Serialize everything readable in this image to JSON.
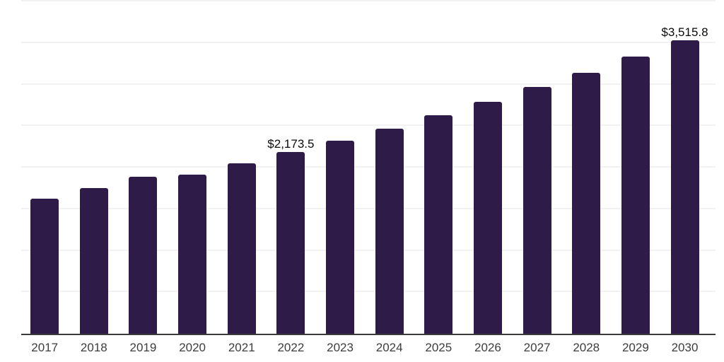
{
  "chart_data": {
    "type": "bar",
    "title": "",
    "xlabel": "",
    "ylabel": "",
    "categories": [
      "2017",
      "2018",
      "2019",
      "2020",
      "2021",
      "2022",
      "2023",
      "2024",
      "2025",
      "2026",
      "2027",
      "2028",
      "2029",
      "2030"
    ],
    "values": [
      1610,
      1740,
      1870,
      1900,
      2030,
      2173.5,
      2310,
      2455,
      2615,
      2775,
      2950,
      3125,
      3320,
      3515.8
    ],
    "value_labels": [
      "",
      "",
      "",
      "",
      "",
      "$2,173.5",
      "",
      "",
      "",
      "",
      "",
      "",
      "",
      "$3,515.8"
    ],
    "ylim": [
      0,
      4000
    ],
    "gridline_step": 500,
    "grid": true,
    "legend_position": "none",
    "y_axis_ticks_visible": false,
    "colors": {
      "bar": "#2f1b48",
      "axis_line": "#3b3b3b",
      "gridline": "#f2f2f3",
      "tick_label": "#3d3d3d",
      "value_label": "#0a0a0a",
      "background": "#ffffff"
    }
  }
}
